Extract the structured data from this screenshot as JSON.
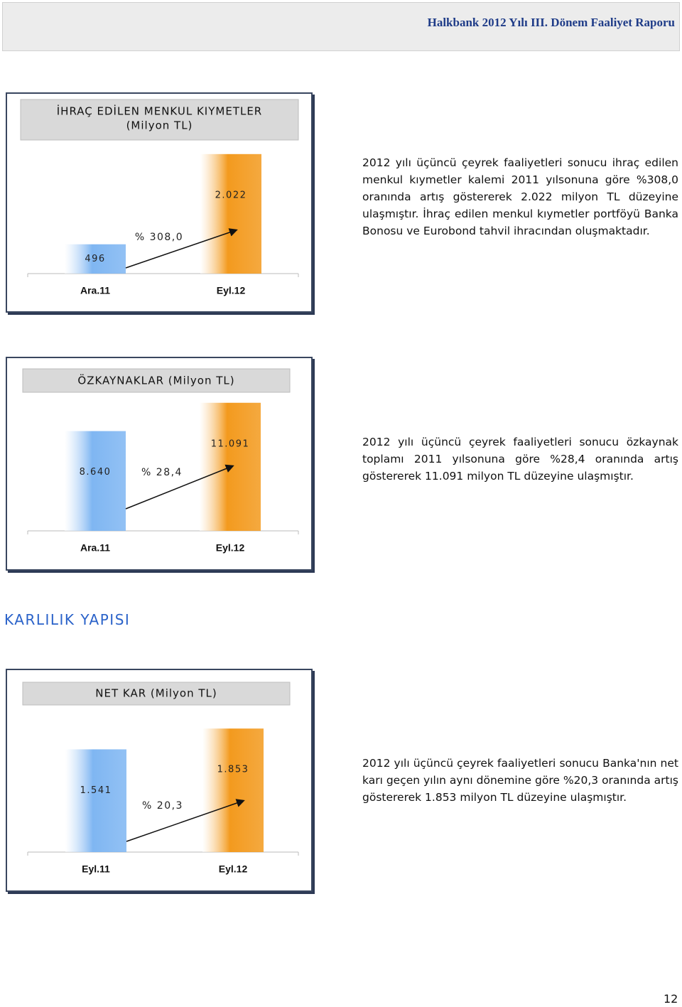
{
  "header": {
    "title": "Halkbank 2012 Yılı III. Dönem Faaliyet Raporu"
  },
  "section_title": "KARLILIK YAPISI",
  "paragraphs": [
    "2012 yılı üçüncü çeyrek faaliyetleri sonucu ihraç edilen menkul kıymetler kalemi 2011 yılsonuna göre %308,0 oranında artış göstererek 2.022 milyon TL düzeyine ulaşmıştır. İhraç edilen menkul kıymetler portföyü Banka Bonosu ve Eurobond tahvil ihracından oluşmaktadır.",
    "2012 yılı üçüncü çeyrek faaliyetleri sonucu özkaynak toplamı 2011 yılsonuna göre %28,4 oranında artış göstererek 11.091 milyon TL düzeyine ulaşmıştır.",
    "2012 yılı üçüncü çeyrek faaliyetleri sonucu Banka'nın net karı geçen yılın aynı dönemine göre %20,3 oranında artış göstererek 1.853 milyon TL düzeyine ulaşmıştır."
  ],
  "page_number": "12",
  "chart_data": [
    {
      "type": "bar",
      "title": "İHRAÇ EDİLEN MENKUL KIYMETLER",
      "subtitle": "(Milyon TL)",
      "categories": [
        "Ara.11",
        "Eyl.12"
      ],
      "values": [
        496,
        2022
      ],
      "value_labels": [
        "496",
        "2.022"
      ],
      "colors": [
        "#7fb6f2",
        "#f39a1e"
      ],
      "annotation": "% 308,0",
      "ylim": [
        0,
        2200
      ]
    },
    {
      "type": "bar",
      "title": "ÖZKAYNAKLAR (Milyon TL)",
      "categories": [
        "Ara.11",
        "Eyl.12"
      ],
      "values": [
        8640,
        11091
      ],
      "value_labels": [
        "8.640",
        "11.091"
      ],
      "colors": [
        "#7fb6f2",
        "#f39a1e"
      ],
      "annotation": "% 28,4",
      "ylim": [
        0,
        12000
      ]
    },
    {
      "type": "bar",
      "title": "NET KAR (Milyon TL)",
      "categories": [
        "Eyl.11",
        "Eyl.12"
      ],
      "values": [
        1541,
        1853
      ],
      "value_labels": [
        "1.541",
        "1.853"
      ],
      "colors": [
        "#7fb6f2",
        "#f39a1e"
      ],
      "annotation": "% 20,3",
      "ylim": [
        0,
        2100
      ]
    }
  ]
}
